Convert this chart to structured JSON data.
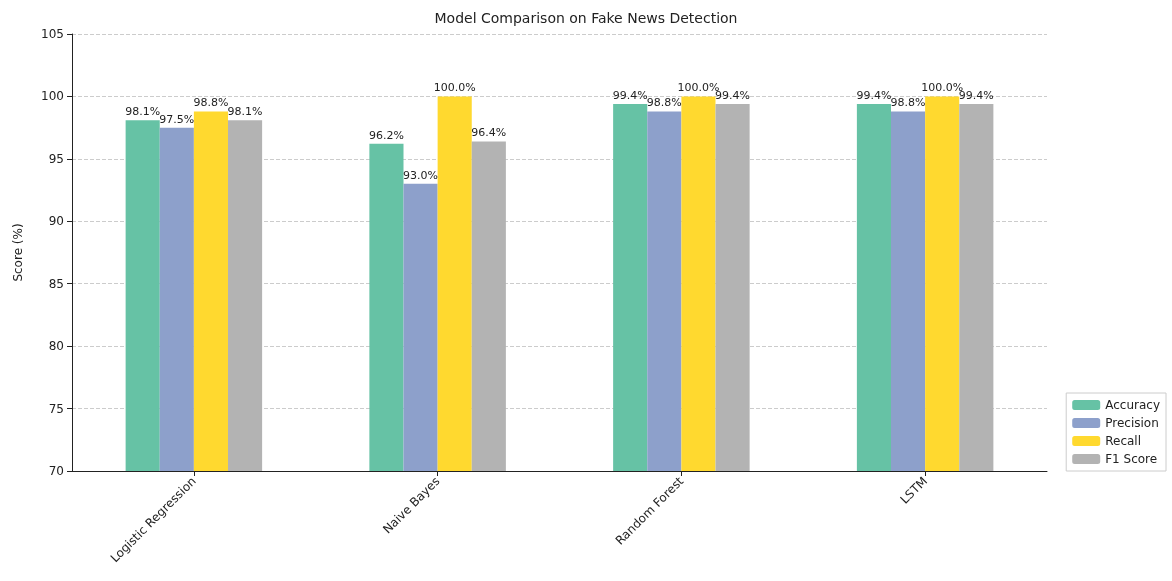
{
  "chart_data": {
    "type": "bar",
    "title": "Model Comparison on Fake News Detection",
    "ylabel": "Score (%)",
    "categories": [
      "Logistic Regression",
      "Naive Bayes",
      "Random Forest",
      "LSTM"
    ],
    "series": [
      {
        "name": "Accuracy",
        "color": "#66c2a5",
        "values": [
          98.1,
          96.2,
          99.4,
          99.4
        ],
        "value_labels": [
          "98.1%",
          "96.2%",
          "99.4%",
          "99.4%"
        ]
      },
      {
        "name": "Precision",
        "color": "#8da0cb",
        "values": [
          97.5,
          93.0,
          98.8,
          98.8
        ],
        "value_labels": [
          "97.5%",
          "93.0%",
          "98.8%",
          "98.8%"
        ]
      },
      {
        "name": "Recall",
        "color": "#ffd92f",
        "values": [
          98.8,
          100.0,
          100.0,
          100.0
        ],
        "value_labels": [
          "98.8%",
          "100.0%",
          "100.0%",
          "100.0%"
        ]
      },
      {
        "name": "F1 Score",
        "color": "#b3b3b3",
        "values": [
          98.1,
          96.4,
          99.4,
          99.4
        ],
        "value_labels": [
          "98.1%",
          "96.4%",
          "99.4%",
          "99.4%"
        ]
      }
    ],
    "ylim": [
      70,
      105
    ],
    "yticks": [
      70,
      75,
      80,
      85,
      90,
      95,
      100,
      105
    ],
    "grid": "y",
    "legend": "bottom right"
  }
}
